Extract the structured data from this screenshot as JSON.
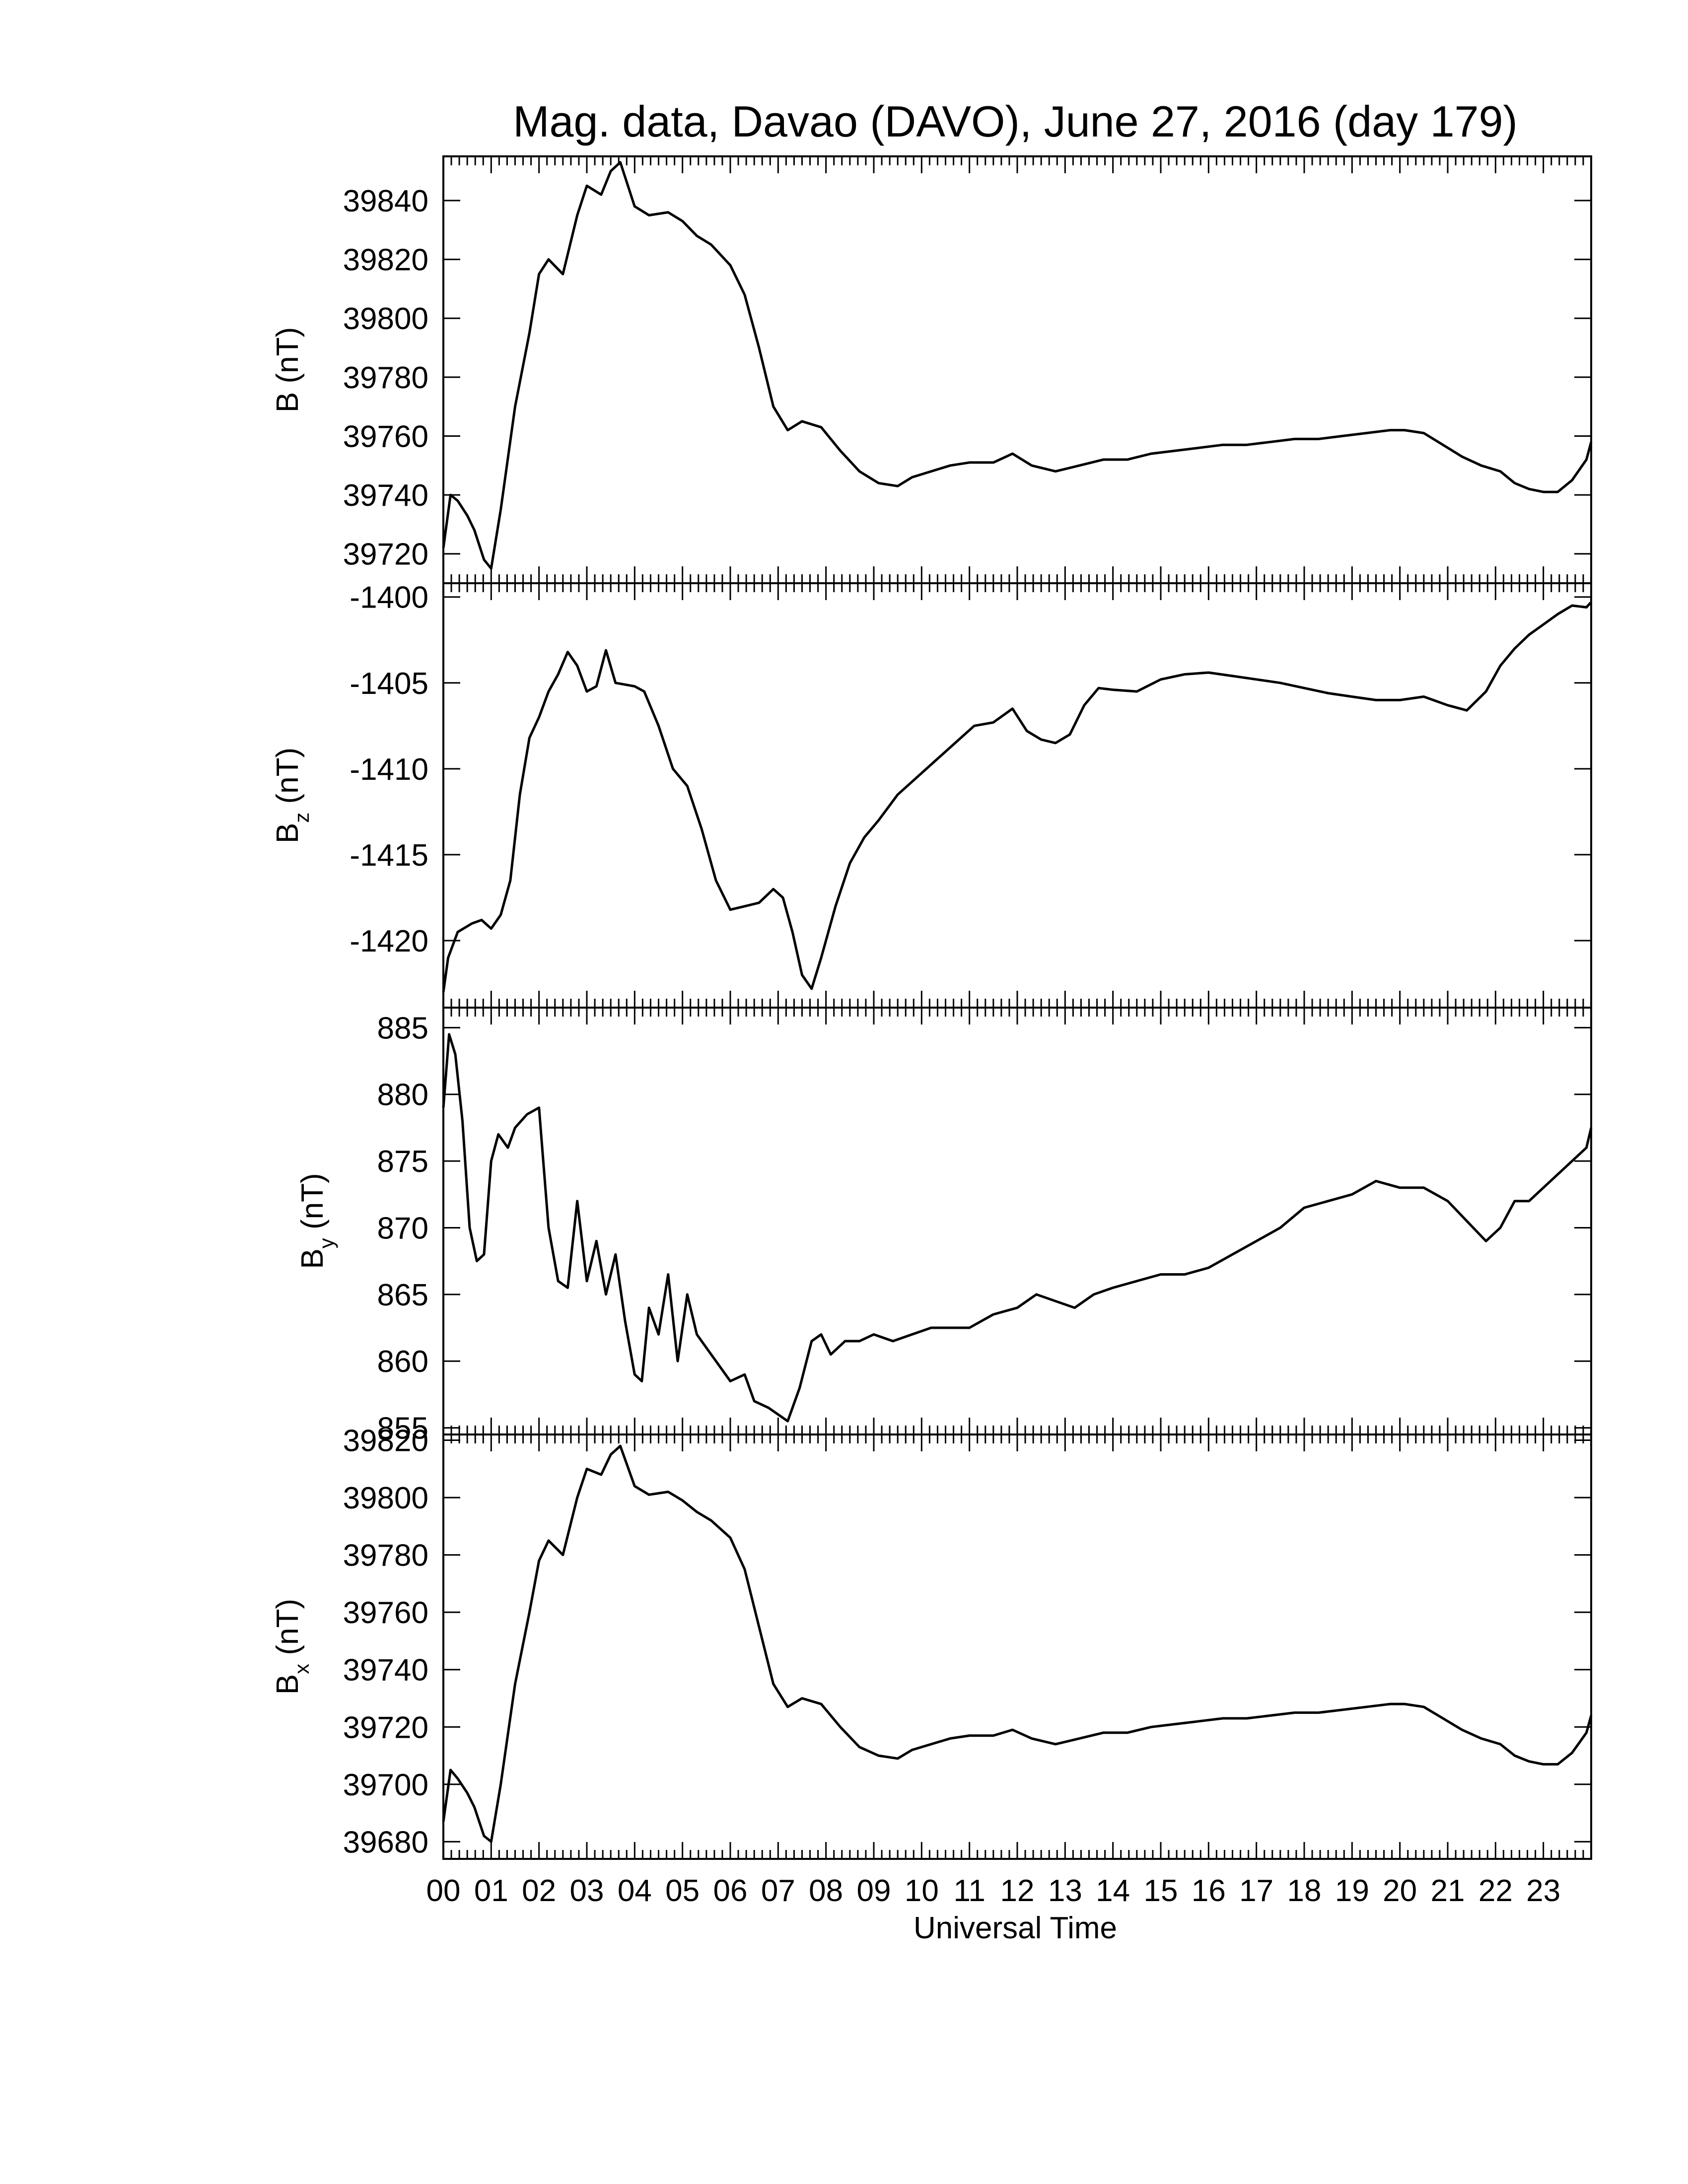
{
  "chart_data": {
    "type": "line",
    "title": "Mag. data, Davao (DAVO), June 27, 2016 (day 179)",
    "xlabel": "Universal Time",
    "x_ticks": [
      "00",
      "01",
      "02",
      "03",
      "04",
      "05",
      "06",
      "07",
      "08",
      "09",
      "10",
      "11",
      "12",
      "13",
      "14",
      "15",
      "16",
      "17",
      "18",
      "19",
      "20",
      "21",
      "22",
      "23"
    ],
    "xlim": [
      0,
      24
    ],
    "panels": [
      {
        "id": "B",
        "ylabel": "B (nT)",
        "ylabel_main": "B",
        "ylabel_sub": "",
        "ylabel_unit": "(nT)",
        "ylim": [
          39710,
          39855
        ],
        "yticks": [
          39720,
          39740,
          39760,
          39780,
          39800,
          39820,
          39840
        ],
        "x": [
          0,
          0.15,
          0.3,
          0.5,
          0.65,
          0.85,
          1.0,
          1.2,
          1.5,
          1.8,
          2.0,
          2.2,
          2.5,
          2.8,
          3.0,
          3.3,
          3.5,
          3.7,
          4.0,
          4.3,
          4.7,
          5.0,
          5.3,
          5.6,
          6.0,
          6.3,
          6.6,
          6.9,
          7.2,
          7.5,
          7.9,
          8.3,
          8.7,
          9.1,
          9.5,
          9.8,
          10.2,
          10.6,
          11.0,
          11.5,
          11.9,
          12.3,
          12.8,
          13.3,
          13.8,
          14.3,
          14.8,
          15.3,
          15.8,
          16.3,
          16.8,
          17.3,
          17.8,
          18.3,
          18.8,
          19.3,
          19.8,
          20.1,
          20.5,
          20.9,
          21.3,
          21.7,
          22.1,
          22.4,
          22.7,
          23.0,
          23.3,
          23.6,
          23.9,
          24.0
        ],
        "y": [
          39722,
          39740,
          39738,
          39733,
          39728,
          39718,
          39715,
          39735,
          39770,
          39795,
          39815,
          39820,
          39815,
          39835,
          39845,
          39842,
          39850,
          39853,
          39838,
          39835,
          39836,
          39833,
          39828,
          39825,
          39818,
          39808,
          39790,
          39770,
          39762,
          39765,
          39763,
          39755,
          39748,
          39744,
          39743,
          39746,
          39748,
          39750,
          39751,
          39751,
          39754,
          39750,
          39748,
          39750,
          39752,
          39752,
          39754,
          39755,
          39756,
          39757,
          39757,
          39758,
          39759,
          39759,
          39760,
          39761,
          39762,
          39762,
          39761,
          39757,
          39753,
          39750,
          39748,
          39744,
          39742,
          39741,
          39741,
          39745,
          39752,
          39758
        ]
      },
      {
        "id": "Bz",
        "ylabel": "Bz (nT)",
        "ylabel_main": "B",
        "ylabel_sub": "z",
        "ylabel_unit": "(nT)",
        "ylim": [
          -1423.9,
          -1399.2
        ],
        "yticks": [
          -1400,
          -1405,
          -1410,
          -1415,
          -1420
        ],
        "x": [
          0,
          0.1,
          0.3,
          0.6,
          0.8,
          1.0,
          1.2,
          1.4,
          1.6,
          1.8,
          2.0,
          2.2,
          2.4,
          2.6,
          2.8,
          3.0,
          3.2,
          3.4,
          3.6,
          3.8,
          4.0,
          4.2,
          4.5,
          4.8,
          5.1,
          5.4,
          5.7,
          6.0,
          6.3,
          6.6,
          6.9,
          7.1,
          7.3,
          7.5,
          7.7,
          7.9,
          8.2,
          8.5,
          8.8,
          9.1,
          9.5,
          9.9,
          10.3,
          10.7,
          11.1,
          11.5,
          11.9,
          12.2,
          12.5,
          12.8,
          13.1,
          13.4,
          13.7,
          14.0,
          14.5,
          15.0,
          15.5,
          16.0,
          16.5,
          17.0,
          17.5,
          18.0,
          18.5,
          19.0,
          19.5,
          20.0,
          20.5,
          21.0,
          21.4,
          21.8,
          22.1,
          22.4,
          22.7,
          23.0,
          23.3,
          23.6,
          23.9,
          24.0
        ],
        "y": [
          -1423.0,
          -1421.0,
          -1419.5,
          -1419.0,
          -1418.8,
          -1419.3,
          -1418.5,
          -1416.5,
          -1411.5,
          -1408.2,
          -1407.0,
          -1405.5,
          -1404.5,
          -1403.2,
          -1404.0,
          -1405.5,
          -1405.2,
          -1403.1,
          -1405.0,
          -1405.1,
          -1405.2,
          -1405.5,
          -1407.5,
          -1410.0,
          -1411.0,
          -1413.5,
          -1416.5,
          -1418.2,
          -1418.0,
          -1417.8,
          -1417.0,
          -1417.5,
          -1419.5,
          -1422.0,
          -1422.8,
          -1421.0,
          -1418.0,
          -1415.5,
          -1414.0,
          -1413.0,
          -1411.5,
          -1410.5,
          -1409.5,
          -1408.5,
          -1407.5,
          -1407.3,
          -1406.5,
          -1407.8,
          -1408.3,
          -1408.5,
          -1408.0,
          -1406.3,
          -1405.3,
          -1405.4,
          -1405.5,
          -1404.8,
          -1404.5,
          -1404.4,
          -1404.6,
          -1404.8,
          -1405.0,
          -1405.3,
          -1405.6,
          -1405.8,
          -1406.0,
          -1406.0,
          -1405.8,
          -1406.3,
          -1406.6,
          -1405.5,
          -1404.0,
          -1403.0,
          -1402.2,
          -1401.6,
          -1401.0,
          -1400.5,
          -1400.6,
          -1400.3
        ]
      },
      {
        "id": "By",
        "ylabel": "By (nT)",
        "ylabel_main": "B",
        "ylabel_sub": "y",
        "ylabel_unit": "(nT)",
        "ylim": [
          854.5,
          886.5
        ],
        "yticks": [
          855,
          860,
          865,
          870,
          875,
          880,
          885
        ],
        "x": [
          0,
          0.12,
          0.25,
          0.4,
          0.55,
          0.7,
          0.85,
          1.0,
          1.15,
          1.35,
          1.5,
          1.75,
          2.0,
          2.2,
          2.4,
          2.6,
          2.8,
          3.0,
          3.2,
          3.4,
          3.6,
          3.8,
          4.0,
          4.15,
          4.3,
          4.5,
          4.7,
          4.9,
          5.1,
          5.3,
          5.5,
          5.7,
          6.0,
          6.3,
          6.5,
          6.8,
          7.0,
          7.2,
          7.45,
          7.7,
          7.9,
          8.1,
          8.4,
          8.7,
          9.0,
          9.4,
          9.8,
          10.2,
          10.6,
          11.0,
          11.5,
          12.0,
          12.4,
          12.8,
          13.2,
          13.6,
          14.0,
          14.5,
          15.0,
          15.5,
          16.0,
          16.5,
          17.0,
          17.5,
          18.0,
          18.5,
          19.0,
          19.5,
          20.0,
          20.5,
          21.0,
          21.4,
          21.8,
          22.1,
          22.4,
          22.7,
          23.0,
          23.3,
          23.6,
          23.9,
          24.0
        ],
        "y": [
          879,
          884.5,
          883,
          878,
          870,
          867.5,
          868,
          875,
          877,
          876,
          877.5,
          878.5,
          879,
          870,
          866,
          865.5,
          872,
          866,
          869,
          865,
          868,
          863,
          859,
          858.5,
          864,
          862,
          866.5,
          860,
          865,
          862,
          861,
          860,
          858.5,
          859,
          857,
          856.5,
          856,
          855.5,
          858,
          861.5,
          862,
          860.5,
          861.5,
          861.5,
          862,
          861.5,
          862,
          862.5,
          862.5,
          862.5,
          863.5,
          864,
          865,
          864.5,
          864,
          865,
          865.5,
          866,
          866.5,
          866.5,
          867,
          868,
          869,
          870,
          871.5,
          872,
          872.5,
          873.5,
          873,
          873,
          872,
          870.5,
          869,
          870,
          872,
          872,
          873,
          874,
          875,
          876,
          877.5
        ]
      },
      {
        "id": "Bx",
        "ylabel": "Bx (nT)",
        "ylabel_main": "B",
        "ylabel_sub": "x",
        "ylabel_unit": "(nT)",
        "ylim": [
          39674,
          39822
        ],
        "yticks": [
          39680,
          39700,
          39720,
          39740,
          39760,
          39780,
          39800,
          39820
        ],
        "x": [
          0,
          0.15,
          0.3,
          0.5,
          0.65,
          0.85,
          1.0,
          1.2,
          1.5,
          1.8,
          2.0,
          2.2,
          2.5,
          2.8,
          3.0,
          3.3,
          3.5,
          3.7,
          4.0,
          4.3,
          4.7,
          5.0,
          5.3,
          5.6,
          6.0,
          6.3,
          6.6,
          6.9,
          7.2,
          7.5,
          7.9,
          8.3,
          8.7,
          9.1,
          9.5,
          9.8,
          10.2,
          10.6,
          11.0,
          11.5,
          11.9,
          12.3,
          12.8,
          13.3,
          13.8,
          14.3,
          14.8,
          15.3,
          15.8,
          16.3,
          16.8,
          17.3,
          17.8,
          18.3,
          18.8,
          19.3,
          19.8,
          20.1,
          20.5,
          20.9,
          21.3,
          21.7,
          22.1,
          22.4,
          22.7,
          23.0,
          23.3,
          23.6,
          23.9,
          24.0
        ],
        "y": [
          39687,
          39705,
          39702,
          39697,
          39692,
          39682,
          39680,
          39700,
          39735,
          39760,
          39778,
          39785,
          39780,
          39800,
          39810,
          39808,
          39815,
          39818,
          39804,
          39801,
          39802,
          39799,
          39795,
          39792,
          39786,
          39775,
          39755,
          39735,
          39727,
          39730,
          39728,
          39720,
          39713,
          39710,
          39709,
          39712,
          39714,
          39716,
          39717,
          39717,
          39719,
          39716,
          39714,
          39716,
          39718,
          39718,
          39720,
          39721,
          39722,
          39723,
          39723,
          39724,
          39725,
          39725,
          39726,
          39727,
          39728,
          39728,
          39727,
          39723,
          39719,
          39716,
          39714,
          39710,
          39708,
          39707,
          39707,
          39711,
          39718,
          39724
        ]
      }
    ]
  }
}
